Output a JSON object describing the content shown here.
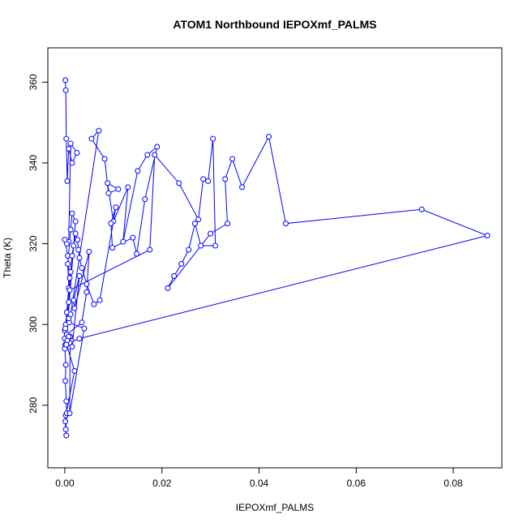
{
  "chart_data": {
    "type": "line",
    "title": "ATOM1 Northbound IEPOXmf_PALMS",
    "xlabel": "IEPOXmf_PALMS",
    "ylabel": "Theta (K)",
    "xlim": [
      -0.0035,
      0.09
    ],
    "ylim": [
      264.5,
      368.5
    ],
    "xticks": [
      0.0,
      0.02,
      0.04,
      0.06,
      0.08
    ],
    "xtick_labels": [
      "0.00",
      "0.02",
      "0.04",
      "0.06",
      "0.08"
    ],
    "yticks": [
      280,
      300,
      320,
      340,
      360
    ],
    "ytick_labels": [
      "280",
      "300",
      "320",
      "340",
      "360"
    ],
    "grid": false,
    "series": [
      {
        "color": "#0000ff",
        "marker": "open-circle",
        "x": [
          0.0001,
          0.0002,
          0.0003,
          0.0005,
          0.0008,
          0.0015,
          0.0025,
          0.0012,
          0.0008,
          0.0004,
          0.0,
          0.0006,
          0.001,
          0.0008,
          0.0002,
          0.0,
          0.0001,
          0.0,
          0.002,
          0.0002,
          0.0003,
          0.0001,
          0.0002,
          0.0004,
          0.0003,
          0.0001,
          0.0002,
          0.0,
          0.0001,
          0.0004,
          0.0008,
          0.0006,
          0.0012,
          0.0015,
          0.0022,
          0.0004,
          0.0035,
          0.0045,
          0.005,
          0.002,
          0.0018,
          0.003,
          0.0015,
          0.0013,
          0.0011,
          0.001,
          0.004,
          0.0009,
          0.0008,
          0.0012,
          0.007,
          0.0055,
          0.0082,
          0.009,
          0.011,
          0.0088,
          0.01,
          0.013,
          0.012,
          0.015,
          0.017,
          0.019,
          0.0165,
          0.0148,
          0.014,
          0.0098,
          0.0095,
          0.0105,
          0.0072,
          0.006,
          0.0045,
          0.0035,
          0.003,
          0.0028,
          0.0026,
          0.0022,
          0.0018,
          0.0015,
          0.0012,
          0.001,
          0.0175,
          0.0185,
          0.0235,
          0.0275,
          0.0285,
          0.0295,
          0.0305,
          0.031,
          0.028,
          0.0268,
          0.0255,
          0.024,
          0.0225,
          0.0212,
          0.03,
          0.0335,
          0.033,
          0.0345,
          0.0365,
          0.042,
          0.0455,
          0.0735,
          0.087,
          0.003,
          0.001,
          0.0008,
          0.0005,
          0.0003
        ],
        "y": [
          360.5,
          358.0,
          346.0,
          335.5,
          343.5,
          340.0,
          342.5,
          344.8,
          320.5,
          320.0,
          321.0,
          317.0,
          311.5,
          305.5,
          300.0,
          298.5,
          295.0,
          296.5,
          288.5,
          277.5,
          272.5,
          276.0,
          274.0,
          278.0,
          281.0,
          286.0,
          290.0,
          294.0,
          299.0,
          303.0,
          309.0,
          315.0,
          323.5,
          327.5,
          325.5,
          297.5,
          300.5,
          308.0,
          318.0,
          304.0,
          306.0,
          312.0,
          294.5,
          296.0,
          297.0,
          278.0,
          299.0,
          300.5,
          301.5,
          302.5,
          348.0,
          346.0,
          341.0,
          332.5,
          333.5,
          335.0,
          325.5,
          334.0,
          320.5,
          338.0,
          342.0,
          344.0,
          331.0,
          317.5,
          321.5,
          319.0,
          325.0,
          329.0,
          306.0,
          305.0,
          310.0,
          314.0,
          316.5,
          318.5,
          321.0,
          322.5,
          319.5,
          317.0,
          313.0,
          308.5,
          318.5,
          342.0,
          335.0,
          326.0,
          336.0,
          335.5,
          346.0,
          319.5,
          319.5,
          325.0,
          318.5,
          315.0,
          312.0,
          309.0,
          322.5,
          325.0,
          336.0,
          341.0,
          334.0,
          346.5,
          325.0,
          328.5,
          322.0,
          296.5,
          295.5,
          297.0,
          296.0,
          295.0
        ]
      }
    ]
  }
}
